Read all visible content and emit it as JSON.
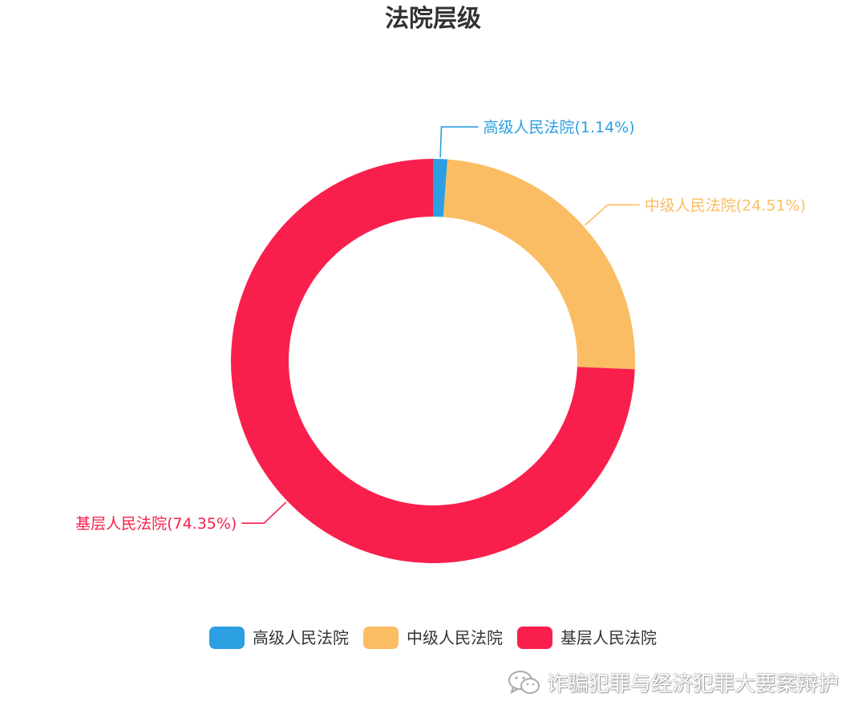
{
  "chart_data": {
    "type": "pie",
    "title": "法院层级",
    "donut": true,
    "slices": [
      {
        "name": "高级人民法院",
        "label": "高级人民法院(1.14%)",
        "value": 1.14,
        "color": "#2c9fe3"
      },
      {
        "name": "中级人民法院",
        "label": "中级人民法院(24.51%)",
        "value": 24.51,
        "color": "#fbbd64"
      },
      {
        "name": "基层人民法院",
        "label": "基层人民法院(74.35%)",
        "value": 74.35,
        "color": "#f91f4d"
      }
    ],
    "legend_position": "bottom"
  },
  "watermark": {
    "text": "诈骗犯罪与经济犯罪大要案辩护",
    "icon": "wechat-icon"
  }
}
